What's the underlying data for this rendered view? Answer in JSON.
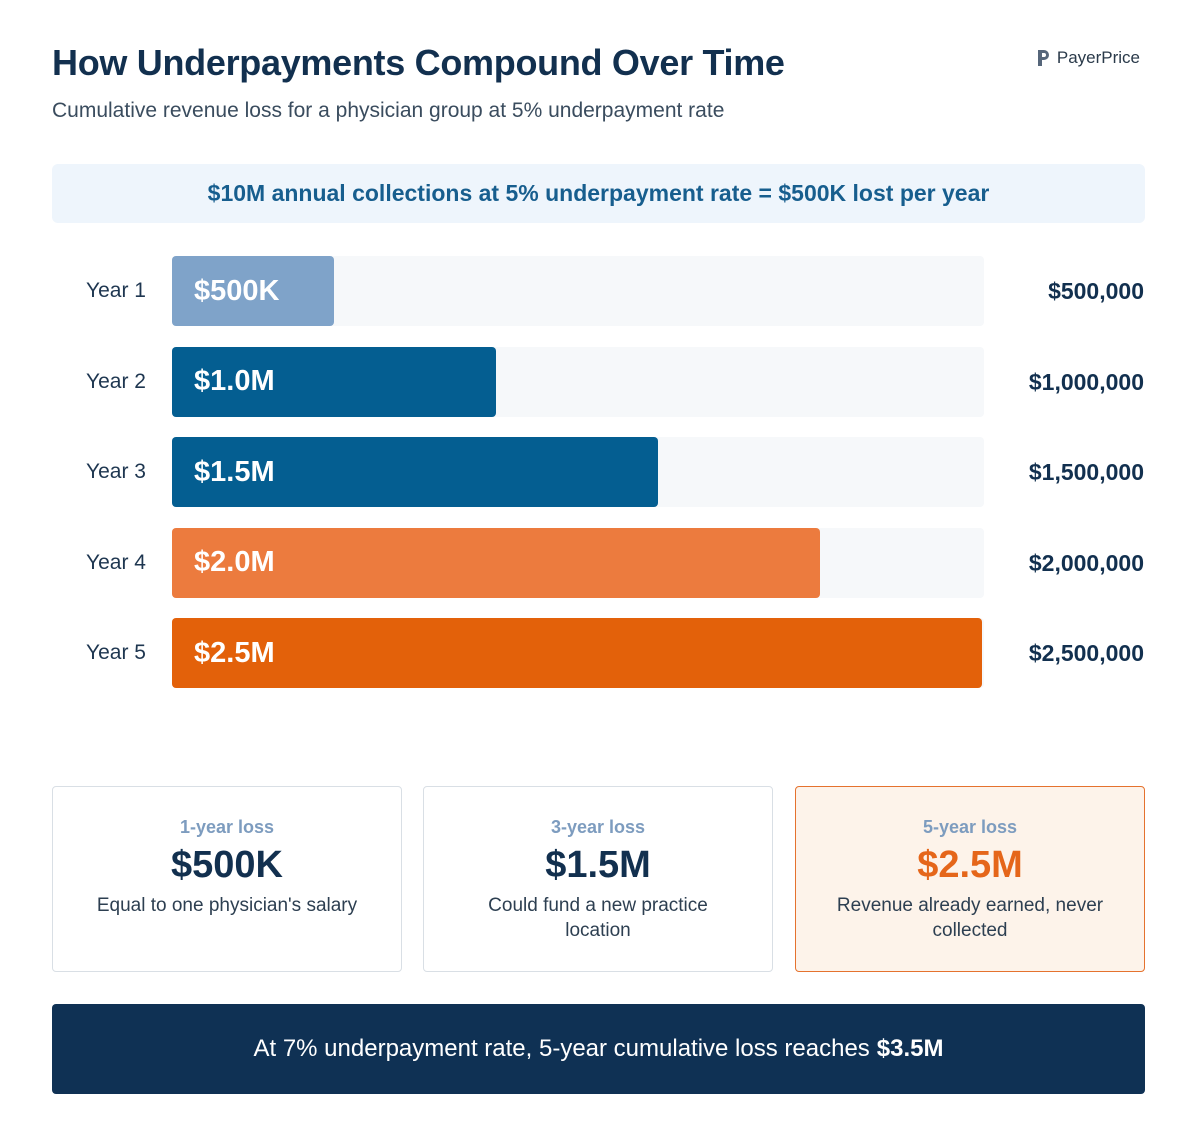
{
  "header": {
    "title": "How Underpayments Compound Over Time",
    "subtitle": "Cumulative revenue loss for a physician group at 5% underpayment rate",
    "brand": "PayerPrice"
  },
  "banner": "$10M annual collections at 5% underpayment rate = $500K lost per year",
  "chart_data": {
    "type": "bar",
    "orientation": "horizontal",
    "categories": [
      "Year 1",
      "Year 2",
      "Year 3",
      "Year 4",
      "Year 5"
    ],
    "values": [
      500000,
      1000000,
      1500000,
      2000000,
      2500000
    ],
    "bar_labels": [
      "$500K",
      "$1.0M",
      "$1.5M",
      "$2.0M",
      "$2.5M"
    ],
    "value_labels": [
      "$500,000",
      "$1,000,000",
      "$1,500,000",
      "$2,000,000",
      "$2,500,000"
    ],
    "bar_colors": [
      "#7fa3c9",
      "#045e91",
      "#045e91",
      "#ec7b3e",
      "#e3610a"
    ],
    "xlim": [
      0,
      2500000
    ],
    "grid": false
  },
  "cards": [
    {
      "label": "1-year loss",
      "value": "$500K",
      "desc": "Equal to one physician's salary"
    },
    {
      "label": "3-year loss",
      "value": "$1.5M",
      "desc": "Could fund a new practice location"
    },
    {
      "label": "5-year loss",
      "value": "$2.5M",
      "desc": "Revenue already earned, never collected"
    }
  ],
  "footer": {
    "text": "At 7% underpayment rate, 5-year cumulative loss reaches",
    "highlight": "$3.5M"
  }
}
